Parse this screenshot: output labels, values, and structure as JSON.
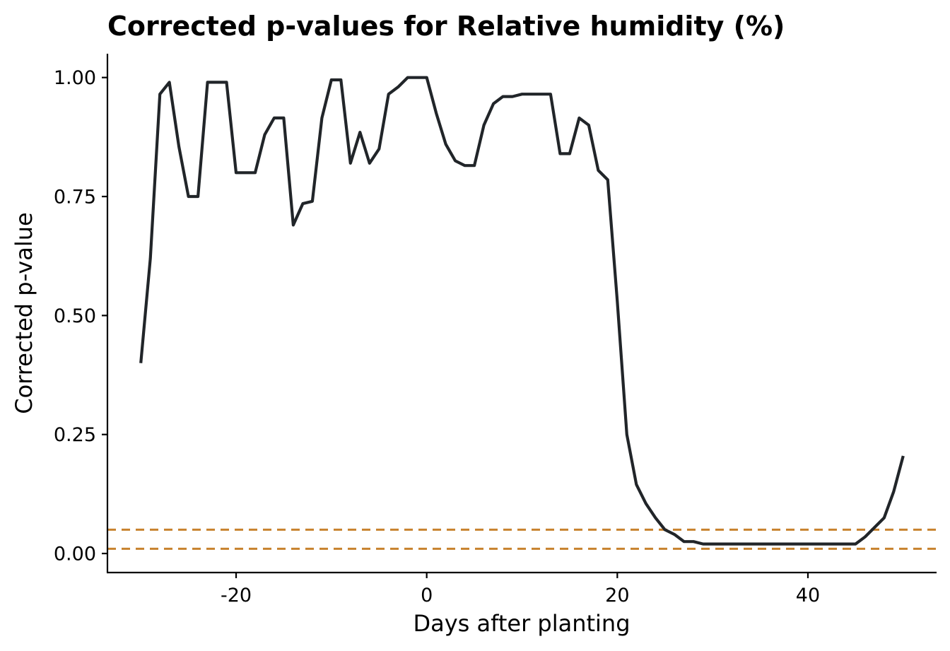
{
  "chart_data": {
    "type": "line",
    "title": "Corrected p-values for Relative humidity (%)",
    "xlabel": "Days after planting",
    "ylabel": "Corrected p-value",
    "xlim": [
      -33.5,
      53.5
    ],
    "ylim": [
      -0.04,
      1.05
    ],
    "x_ticks": [
      -20,
      0,
      20,
      40
    ],
    "x_tick_labels": [
      "-20",
      "0",
      "20",
      "40"
    ],
    "y_ticks": [
      0,
      0.25,
      0.5,
      0.75,
      1
    ],
    "y_tick_labels": [
      "0.00",
      "0.25",
      "0.50",
      "0.75",
      "1.00"
    ],
    "grid": false,
    "legend": "none",
    "line_color": "#212529",
    "threshold_color": "#C8822E",
    "thresholds": [
      0.05,
      0.01
    ],
    "series": [
      {
        "x": [
          -30,
          -29,
          -28,
          -27,
          -26,
          -25,
          -24,
          -23,
          -22,
          -21,
          -20,
          -19,
          -18,
          -17,
          -16,
          -15,
          -14,
          -13,
          -12,
          -11,
          -10,
          -9,
          -8,
          -7,
          -6,
          -5,
          -4,
          -3,
          -2,
          -1,
          0,
          1,
          2,
          3,
          4,
          5,
          6,
          7,
          8,
          9,
          10,
          11,
          12,
          13,
          14,
          15,
          16,
          17,
          18,
          19,
          20,
          21,
          22,
          23,
          24,
          25,
          26,
          27,
          28,
          29,
          30,
          31,
          32,
          33,
          34,
          35,
          36,
          37,
          38,
          39,
          40,
          41,
          42,
          43,
          44,
          45,
          46,
          47,
          48,
          49,
          50
        ],
        "y": [
          0.4,
          0.62,
          0.965,
          0.99,
          0.855,
          0.75,
          0.75,
          0.99,
          0.99,
          0.99,
          0.8,
          0.8,
          0.8,
          0.88,
          0.915,
          0.915,
          0.69,
          0.735,
          0.74,
          0.915,
          0.995,
          0.995,
          0.82,
          0.885,
          0.82,
          0.85,
          0.965,
          0.98,
          1.0,
          1.0,
          1.0,
          0.925,
          0.86,
          0.825,
          0.815,
          0.815,
          0.9,
          0.945,
          0.96,
          0.96,
          0.965,
          0.965,
          0.965,
          0.965,
          0.84,
          0.84,
          0.915,
          0.9,
          0.805,
          0.785,
          0.53,
          0.25,
          0.145,
          0.105,
          0.075,
          0.05,
          0.04,
          0.025,
          0.025,
          0.02,
          0.02,
          0.02,
          0.02,
          0.02,
          0.02,
          0.02,
          0.02,
          0.02,
          0.02,
          0.02,
          0.02,
          0.02,
          0.02,
          0.02,
          0.02,
          0.02,
          0.035,
          0.055,
          0.075,
          0.13,
          0.205
        ]
      }
    ]
  }
}
